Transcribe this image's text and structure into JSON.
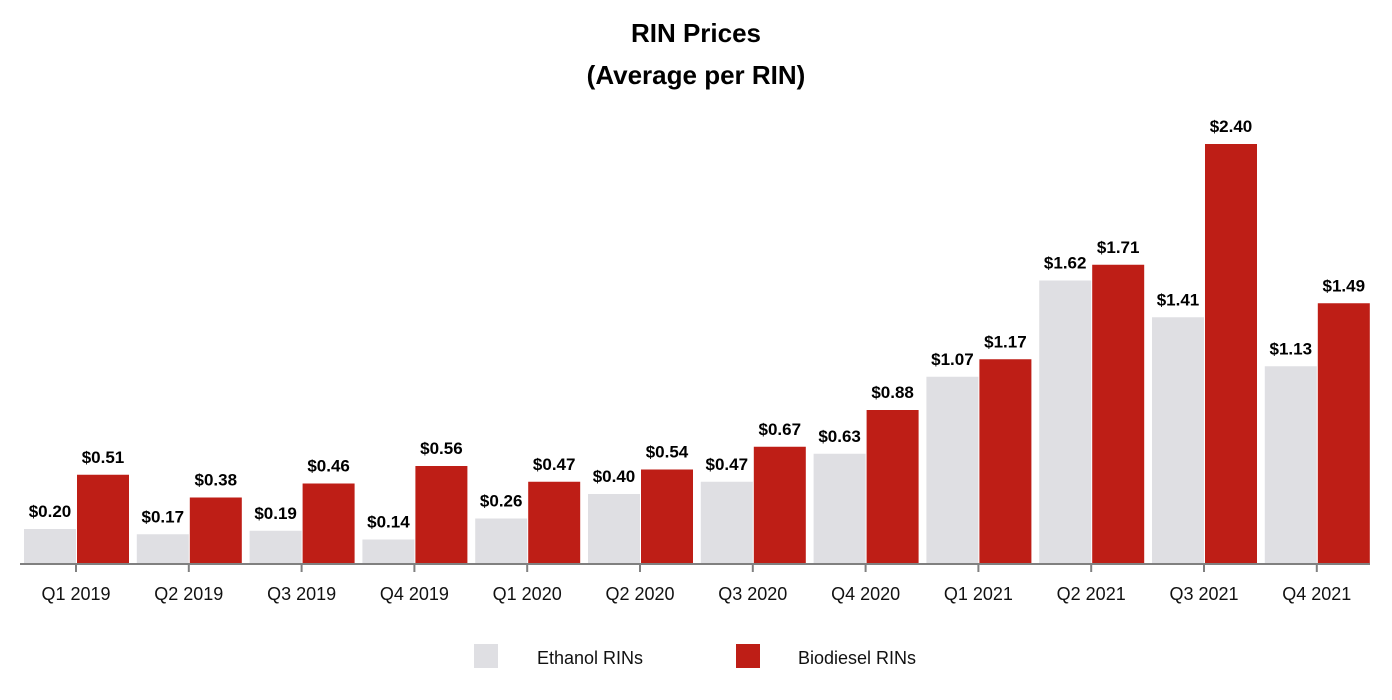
{
  "chart_data": {
    "type": "bar",
    "title": "RIN Prices",
    "subtitle": "(Average per RIN)",
    "xlabel": "",
    "ylabel": "",
    "ylim": [
      0,
      2.4
    ],
    "grid": false,
    "legend_position": "bottom",
    "categories": [
      "Q1 2019",
      "Q2 2019",
      "Q3 2019",
      "Q4 2019",
      "Q1 2020",
      "Q2 2020",
      "Q3 2020",
      "Q4 2020",
      "Q1 2021",
      "Q2 2021",
      "Q3 2021",
      "Q4 2021"
    ],
    "series": [
      {
        "name": "Ethanol RINs",
        "color": "#dfdfe3",
        "values": [
          0.2,
          0.17,
          0.19,
          0.14,
          0.26,
          0.4,
          0.47,
          0.63,
          1.07,
          1.62,
          1.41,
          1.13
        ],
        "labels": [
          "$0.20",
          "$0.17",
          "$0.19",
          "$0.14",
          "$0.26",
          "$0.40",
          "$0.47",
          "$0.63",
          "$1.07",
          "$1.62",
          "$1.41",
          "$1.13"
        ]
      },
      {
        "name": "Biodiesel RINs",
        "color": "#be1e16",
        "values": [
          0.51,
          0.38,
          0.46,
          0.56,
          0.47,
          0.54,
          0.67,
          0.88,
          1.17,
          1.71,
          2.4,
          1.49
        ],
        "labels": [
          "$0.51",
          "$0.38",
          "$0.46",
          "$0.56",
          "$0.47",
          "$0.54",
          "$0.67",
          "$0.88",
          "$1.17",
          "$1.71",
          "$2.40",
          "$1.49"
        ]
      }
    ]
  }
}
